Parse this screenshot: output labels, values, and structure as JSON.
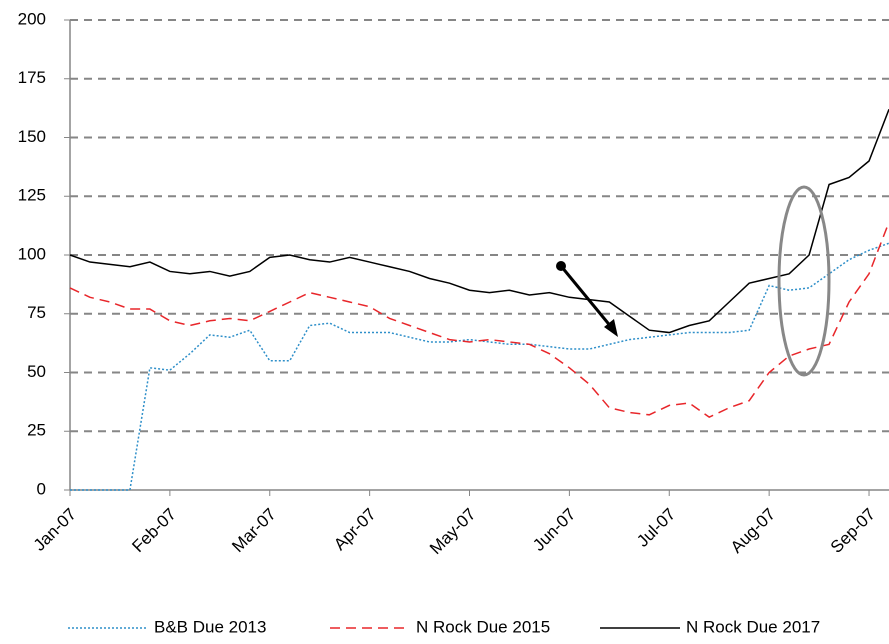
{
  "chart_data": {
    "type": "line",
    "categories": [
      "Jan-07",
      null,
      null,
      null,
      null,
      "Feb-07",
      null,
      null,
      null,
      null,
      "Mar-07",
      null,
      null,
      null,
      null,
      "Apr-07",
      null,
      null,
      null,
      null,
      "May-07",
      null,
      null,
      null,
      null,
      "Jun-07",
      null,
      null,
      null,
      null,
      "Jul-07",
      null,
      null,
      null,
      null,
      "Aug-07",
      null,
      null,
      null,
      null,
      "Sep-07",
      null
    ],
    "series": [
      {
        "name": "B&B Due 2013",
        "color": "#2e8fc9",
        "dash": "dotted",
        "values": [
          0,
          0,
          0,
          0,
          52,
          51,
          58,
          66,
          65,
          68,
          55,
          55,
          70,
          71,
          67,
          67,
          67,
          65,
          63,
          63,
          64,
          63,
          62,
          62,
          61,
          60,
          60,
          62,
          64,
          65,
          66,
          67,
          67,
          67,
          68,
          87,
          85,
          86,
          92,
          98,
          102,
          105
        ]
      },
      {
        "name": "N Rock Due 2015",
        "color": "#e8262a",
        "dash": "dashed",
        "values": [
          86,
          82,
          80,
          77,
          77,
          72,
          70,
          72,
          73,
          72,
          76,
          80,
          84,
          82,
          80,
          78,
          73,
          70,
          67,
          64,
          63,
          64,
          63,
          62,
          58,
          52,
          45,
          35,
          33,
          32,
          36,
          37,
          31,
          35,
          38,
          50,
          57,
          60,
          62,
          80,
          92,
          114
        ]
      },
      {
        "name": "N Rock Due 2017",
        "color": "#000000",
        "dash": "solid",
        "values": [
          100,
          97,
          96,
          95,
          97,
          93,
          92,
          93,
          91,
          93,
          99,
          100,
          98,
          97,
          99,
          97,
          95,
          93,
          90,
          88,
          85,
          84,
          85,
          83,
          84,
          82,
          81,
          80,
          74,
          68,
          67,
          70,
          72,
          80,
          88,
          90,
          92,
          100,
          130,
          133,
          140,
          162
        ]
      }
    ],
    "ylim": [
      0,
      200
    ],
    "yticks": [
      0,
      25,
      50,
      75,
      100,
      125,
      150,
      175,
      200
    ],
    "grid": true,
    "legend": "bottom"
  }
}
